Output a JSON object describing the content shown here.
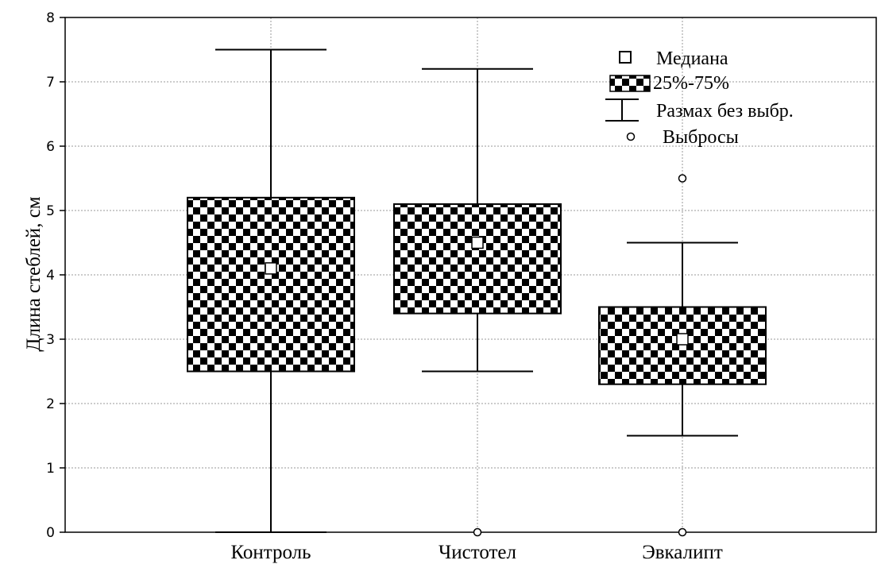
{
  "chart_data": {
    "type": "box",
    "title": "",
    "xlabel": "",
    "ylabel": "Длина стеблей, см",
    "ylim": [
      0,
      8
    ],
    "yticks": [
      "0",
      "1",
      "2",
      "3",
      "4",
      "5",
      "6",
      "7",
      "8"
    ],
    "grid": true,
    "legend_position": "top-right",
    "categories": [
      "Контроль",
      "Чистотел",
      "Эвкалипт"
    ],
    "boxes": [
      {
        "category": "Контроль",
        "whisker_low": 0.0,
        "q1": 2.5,
        "median": 4.1,
        "q3": 5.2,
        "whisker_high": 7.5,
        "outliers": []
      },
      {
        "category": "Чистотел",
        "whisker_low": 2.5,
        "q1": 3.4,
        "median": 4.5,
        "q3": 5.1,
        "whisker_high": 7.2,
        "outliers": [
          0.0
        ]
      },
      {
        "category": "Эвкалипт",
        "whisker_low": 1.5,
        "q1": 2.3,
        "median": 3.0,
        "q3": 3.5,
        "whisker_high": 4.5,
        "outliers": [
          5.5,
          0.0
        ]
      }
    ],
    "legend": {
      "median": "Медиана",
      "iqr": "25%-75%",
      "range": "Размах без выбр.",
      "outliers": "Выбросы"
    }
  }
}
